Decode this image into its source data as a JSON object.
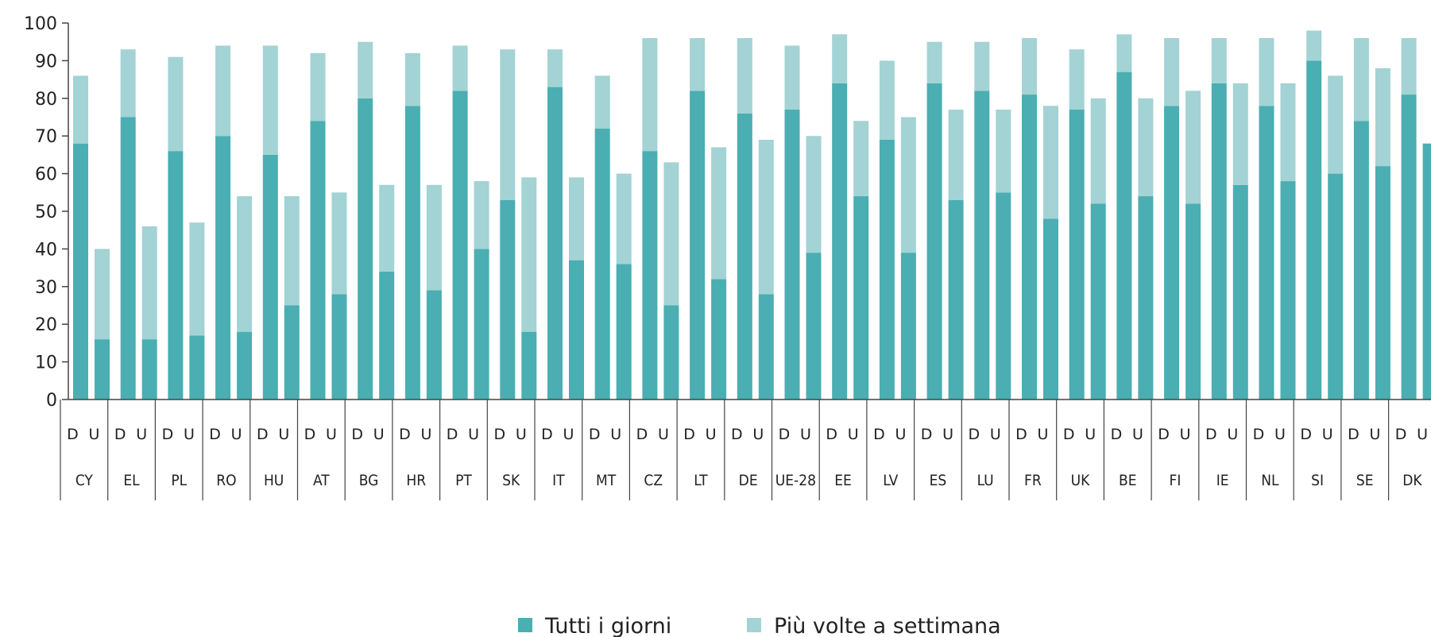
{
  "colors": {
    "dark": "#4aaeb2",
    "light": "#a3d3d4",
    "axis": "#444444",
    "text": "#222222"
  },
  "legend": {
    "dark_label": "Tutti i giorni",
    "light_label": "Più volte a settimana"
  },
  "chart_data": {
    "type": "bar",
    "stacked": true,
    "title": "",
    "xlabel": "",
    "ylabel": "",
    "ylim": [
      0,
      100
    ],
    "yticks": [
      0,
      10,
      20,
      30,
      40,
      50,
      60,
      70,
      80,
      90,
      100
    ],
    "grid": false,
    "legend_position": "bottom",
    "sub_labels": [
      "D",
      "U"
    ],
    "categories": [
      "CY",
      "EL",
      "PL",
      "RO",
      "HU",
      "AT",
      "BG",
      "HR",
      "PT",
      "SK",
      "IT",
      "MT",
      "CZ",
      "LT",
      "DE",
      "UE-28",
      "EE",
      "LV",
      "ES",
      "LU",
      "FR",
      "UK",
      "BE",
      "FI",
      "IE",
      "NL",
      "SI",
      "SE",
      "DK"
    ],
    "series": [
      {
        "name": "Tutti i giorni",
        "values": [
          [
            68,
            16
          ],
          [
            75,
            16
          ],
          [
            66,
            17
          ],
          [
            70,
            18
          ],
          [
            65,
            25
          ],
          [
            74,
            28
          ],
          [
            80,
            34
          ],
          [
            78,
            29
          ],
          [
            82,
            40
          ],
          [
            53,
            18
          ],
          [
            83,
            37
          ],
          [
            72,
            36
          ],
          [
            66,
            25
          ],
          [
            82,
            32
          ],
          [
            76,
            28
          ],
          [
            77,
            39
          ],
          [
            84,
            54
          ],
          [
            69,
            39
          ],
          [
            84,
            53
          ],
          [
            82,
            55
          ],
          [
            81,
            48
          ],
          [
            77,
            52
          ],
          [
            87,
            54
          ],
          [
            78,
            52
          ],
          [
            84,
            57
          ],
          [
            78,
            58
          ],
          [
            90,
            60
          ],
          [
            74,
            62
          ],
          [
            81,
            68
          ]
        ]
      },
      {
        "name": "Più volte a settimana",
        "values": [
          [
            18,
            24
          ],
          [
            18,
            30
          ],
          [
            25,
            30
          ],
          [
            24,
            36
          ],
          [
            29,
            29
          ],
          [
            18,
            27
          ],
          [
            15,
            23
          ],
          [
            14,
            28
          ],
          [
            12,
            18
          ],
          [
            40,
            41
          ],
          [
            10,
            22
          ],
          [
            14,
            24
          ],
          [
            30,
            38
          ],
          [
            14,
            35
          ],
          [
            20,
            41
          ],
          [
            17,
            31
          ],
          [
            13,
            20
          ],
          [
            21,
            36
          ],
          [
            11,
            24
          ],
          [
            13,
            22
          ],
          [
            15,
            30
          ],
          [
            16,
            28
          ],
          [
            10,
            26
          ],
          [
            18,
            30
          ],
          [
            12,
            27
          ],
          [
            18,
            26
          ],
          [
            8,
            26
          ],
          [
            22,
            26
          ],
          [
            15,
            0
          ]
        ]
      }
    ]
  }
}
